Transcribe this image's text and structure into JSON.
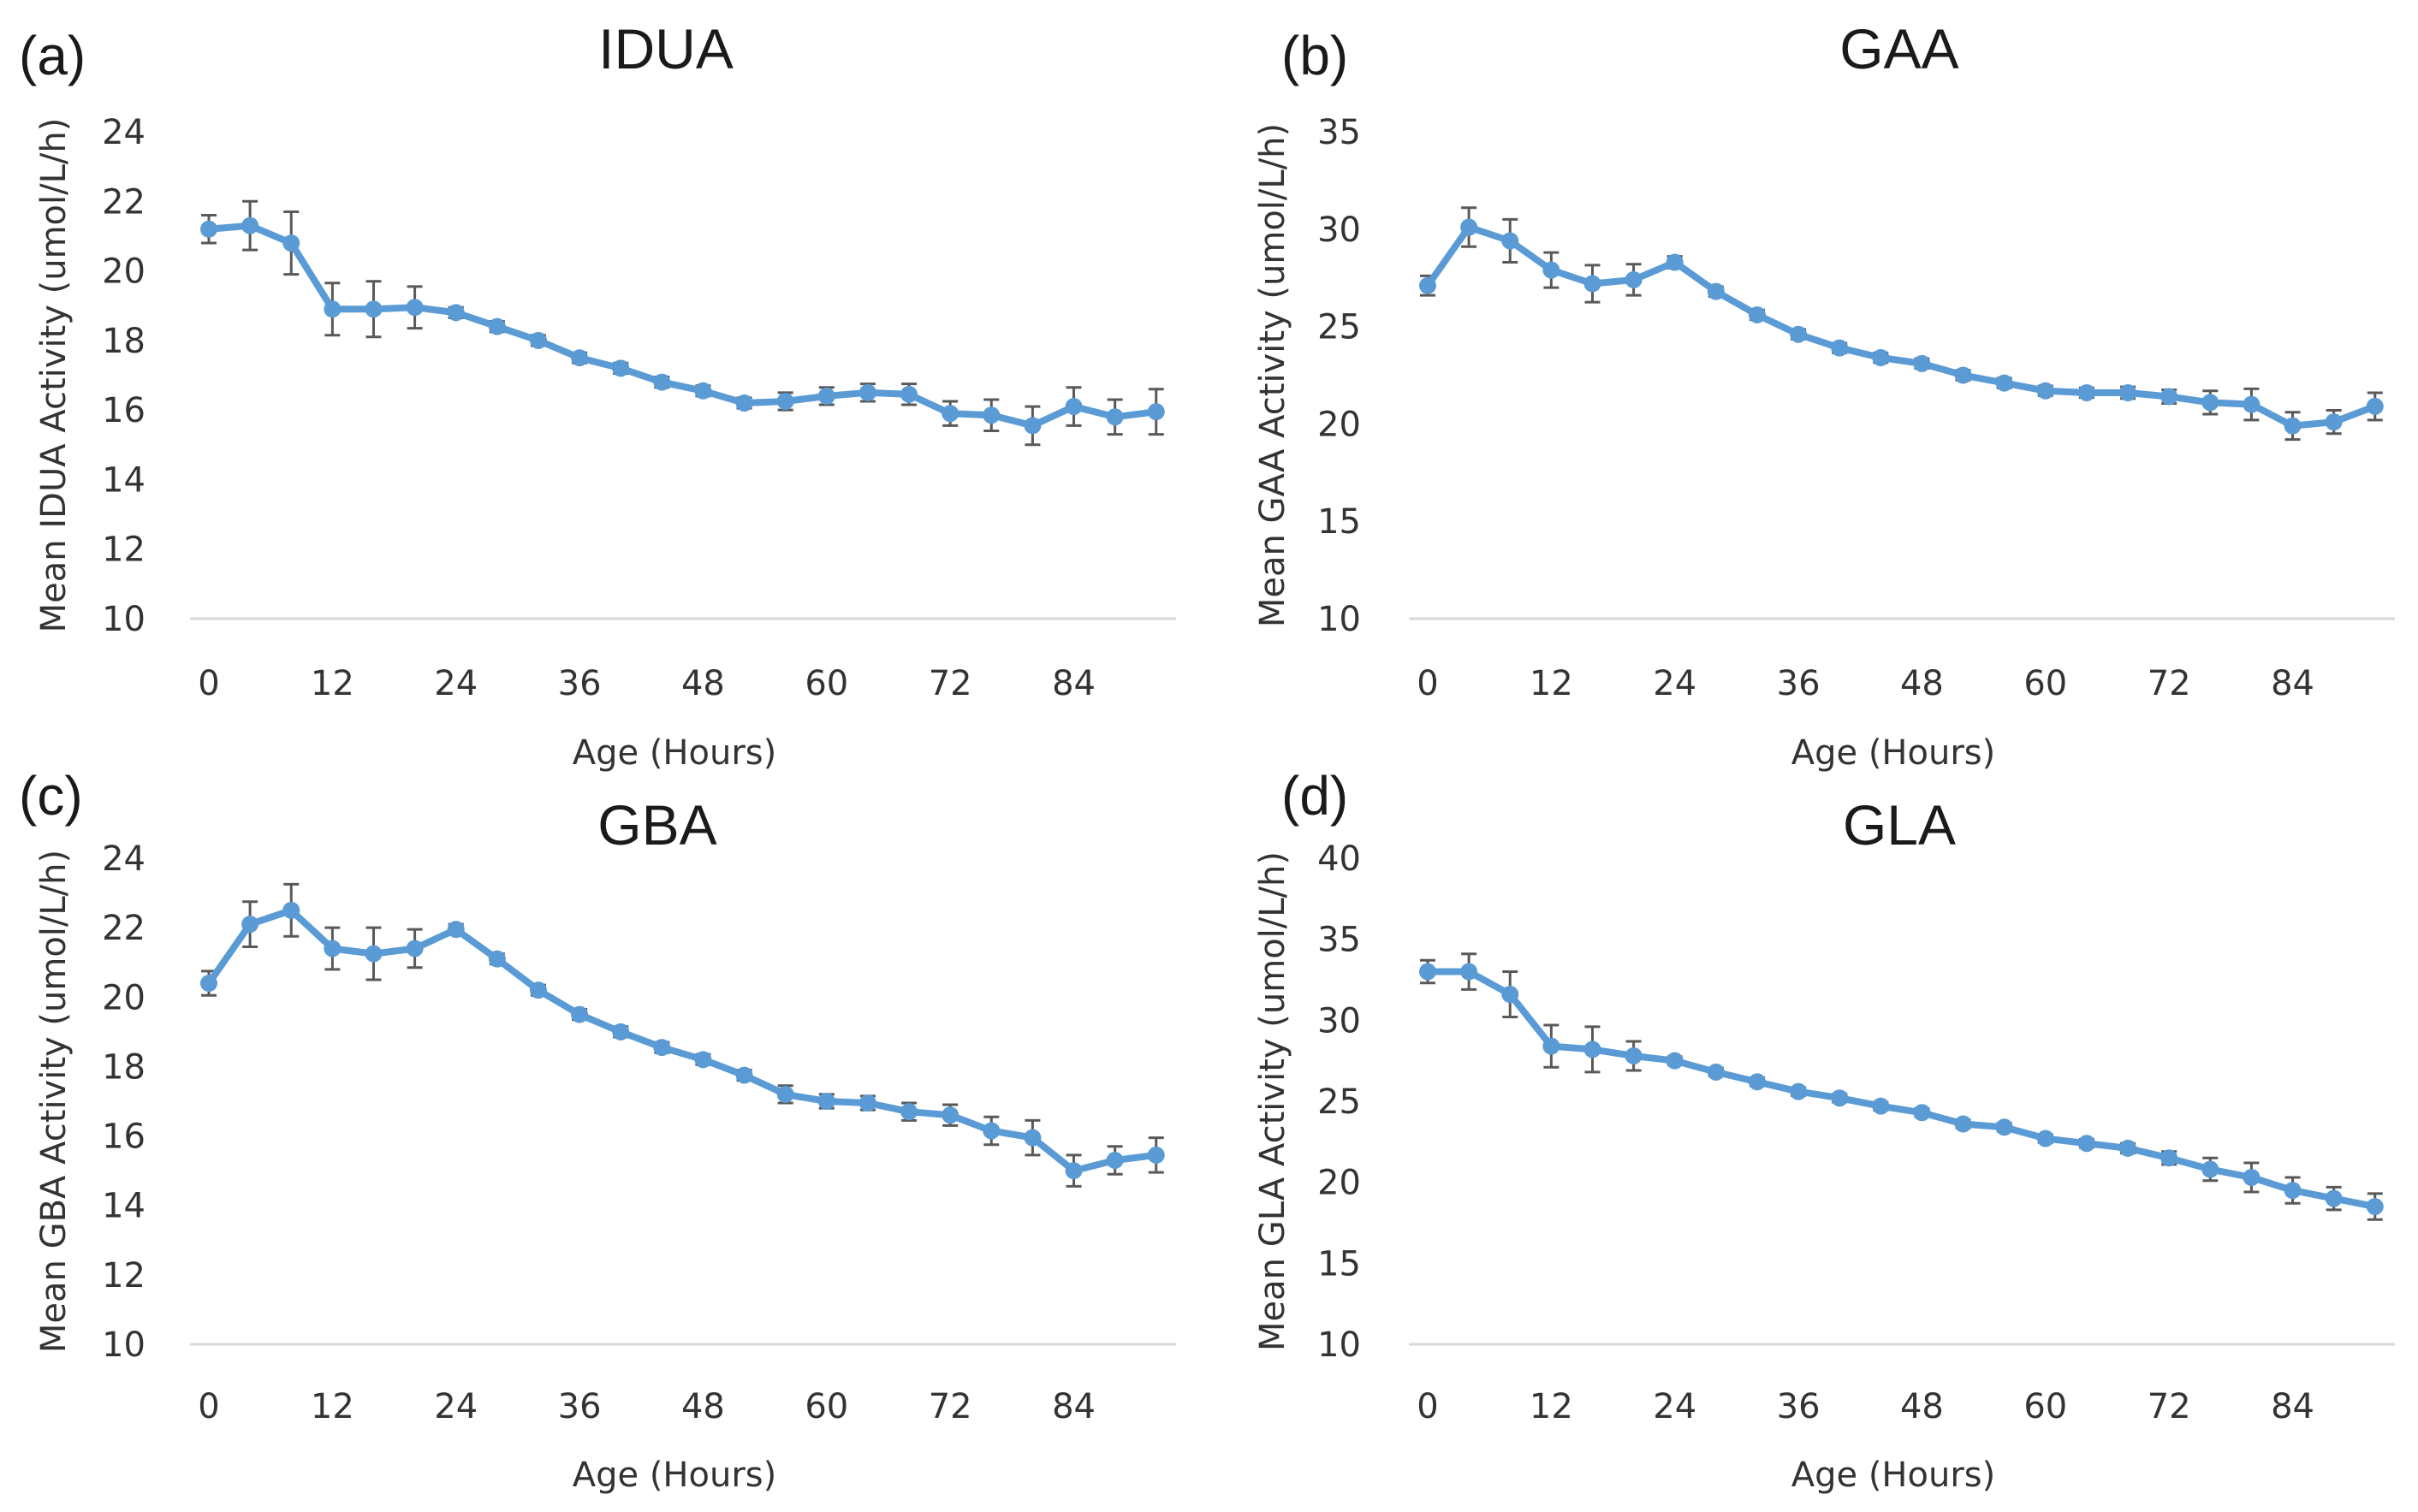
{
  "figure": {
    "series_color": "#5b9bd5",
    "error_color": "#595959",
    "axis_color": "#d9d9d9"
  },
  "chart_data": [
    {
      "panel": "(a)",
      "type": "line",
      "title": "IDUA",
      "xlabel": "Age (Hours)",
      "ylabel": "Mean IDUA Activity (umol/L/h)",
      "ylim": [
        10,
        24
      ],
      "yticks": [
        "10",
        "12",
        "14",
        "16",
        "18",
        "20",
        "22",
        "24"
      ],
      "xticks": [
        "0",
        "12",
        "24",
        "36",
        "48",
        "60",
        "72",
        "84"
      ],
      "x": [
        0,
        4,
        8,
        12,
        16,
        20,
        24,
        28,
        32,
        36,
        40,
        44,
        48,
        52,
        56,
        60,
        64,
        68,
        72,
        76,
        80,
        84,
        88,
        92
      ],
      "values": [
        21.2,
        21.3,
        20.8,
        18.9,
        18.9,
        18.95,
        18.8,
        18.4,
        18.0,
        17.5,
        17.2,
        16.8,
        16.55,
        16.2,
        16.25,
        16.4,
        16.5,
        16.45,
        15.9,
        15.85,
        15.55,
        16.1,
        15.8,
        15.95
      ],
      "errors": [
        0.4,
        0.7,
        0.9,
        0.75,
        0.8,
        0.6,
        0.15,
        0.15,
        0.15,
        0.15,
        0.15,
        0.15,
        0.15,
        0.15,
        0.25,
        0.25,
        0.25,
        0.3,
        0.35,
        0.45,
        0.55,
        0.55,
        0.5,
        0.65
      ]
    },
    {
      "panel": "(b)",
      "type": "line",
      "title": "GAA",
      "xlabel": "Age (Hours)",
      "ylabel": "Mean GAA Activity (umol/L/h)",
      "ylim": [
        10,
        35
      ],
      "yticks": [
        "10",
        "15",
        "20",
        "25",
        "30",
        "35"
      ],
      "xticks": [
        "0",
        "12",
        "24",
        "36",
        "48",
        "60",
        "72",
        "84"
      ],
      "x": [
        0,
        4,
        8,
        12,
        16,
        20,
        24,
        28,
        32,
        36,
        40,
        44,
        48,
        52,
        56,
        60,
        64,
        68,
        72,
        76,
        80,
        84,
        88,
        92
      ],
      "values": [
        27.1,
        30.1,
        29.4,
        27.9,
        27.2,
        27.4,
        28.3,
        26.8,
        25.6,
        24.6,
        23.9,
        23.4,
        23.1,
        22.5,
        22.1,
        21.7,
        21.6,
        21.6,
        21.4,
        21.1,
        21.0,
        19.9,
        20.1,
        20.9
      ],
      "errors": [
        0.5,
        1.0,
        1.1,
        0.9,
        0.95,
        0.8,
        0.3,
        0.25,
        0.25,
        0.25,
        0.25,
        0.25,
        0.25,
        0.25,
        0.25,
        0.25,
        0.25,
        0.3,
        0.35,
        0.6,
        0.8,
        0.7,
        0.6,
        0.7
      ]
    },
    {
      "panel": "(c)",
      "type": "line",
      "title": "GBA",
      "xlabel": "Age (Hours)",
      "ylabel": "Mean GBA Activity (umol/L/h)",
      "ylim": [
        10,
        24
      ],
      "yticks": [
        "10",
        "12",
        "14",
        "16",
        "18",
        "20",
        "22",
        "24"
      ],
      "xticks": [
        "0",
        "12",
        "24",
        "36",
        "48",
        "60",
        "72",
        "84"
      ],
      "x": [
        0,
        4,
        8,
        12,
        16,
        20,
        24,
        28,
        32,
        36,
        40,
        44,
        48,
        52,
        56,
        60,
        64,
        68,
        72,
        76,
        80,
        84,
        88,
        92
      ],
      "values": [
        20.4,
        22.1,
        22.5,
        21.4,
        21.25,
        21.4,
        21.95,
        21.1,
        20.2,
        19.5,
        19.0,
        18.55,
        18.2,
        17.75,
        17.2,
        17.0,
        16.95,
        16.7,
        16.6,
        16.15,
        15.95,
        15.0,
        15.3,
        15.45
      ],
      "errors": [
        0.35,
        0.65,
        0.75,
        0.6,
        0.75,
        0.55,
        0.15,
        0.15,
        0.15,
        0.15,
        0.15,
        0.15,
        0.15,
        0.15,
        0.25,
        0.2,
        0.2,
        0.25,
        0.3,
        0.4,
        0.5,
        0.45,
        0.4,
        0.5
      ]
    },
    {
      "panel": "(d)",
      "type": "line",
      "title": "GLA",
      "xlabel": "Age (Hours)",
      "ylabel": "Mean GLA Activity (umol/L/h)",
      "ylim": [
        10,
        40
      ],
      "yticks": [
        "10",
        "15",
        "20",
        "25",
        "30",
        "35",
        "40"
      ],
      "xticks": [
        "0",
        "12",
        "24",
        "36",
        "48",
        "60",
        "72",
        "84"
      ],
      "x": [
        0,
        4,
        8,
        12,
        16,
        20,
        24,
        28,
        32,
        36,
        40,
        44,
        48,
        52,
        56,
        60,
        64,
        68,
        72,
        76,
        80,
        84,
        88,
        92
      ],
      "values": [
        33.0,
        33.0,
        31.6,
        28.4,
        28.2,
        27.8,
        27.5,
        26.8,
        26.2,
        25.6,
        25.2,
        24.7,
        24.3,
        23.6,
        23.4,
        22.7,
        22.4,
        22.1,
        21.5,
        20.8,
        20.3,
        19.5,
        19.0,
        18.5
      ],
      "errors": [
        0.7,
        1.1,
        1.4,
        1.3,
        1.4,
        0.9,
        0.25,
        0.25,
        0.25,
        0.25,
        0.25,
        0.25,
        0.25,
        0.25,
        0.25,
        0.25,
        0.25,
        0.3,
        0.4,
        0.7,
        0.9,
        0.8,
        0.7,
        0.8
      ]
    }
  ]
}
